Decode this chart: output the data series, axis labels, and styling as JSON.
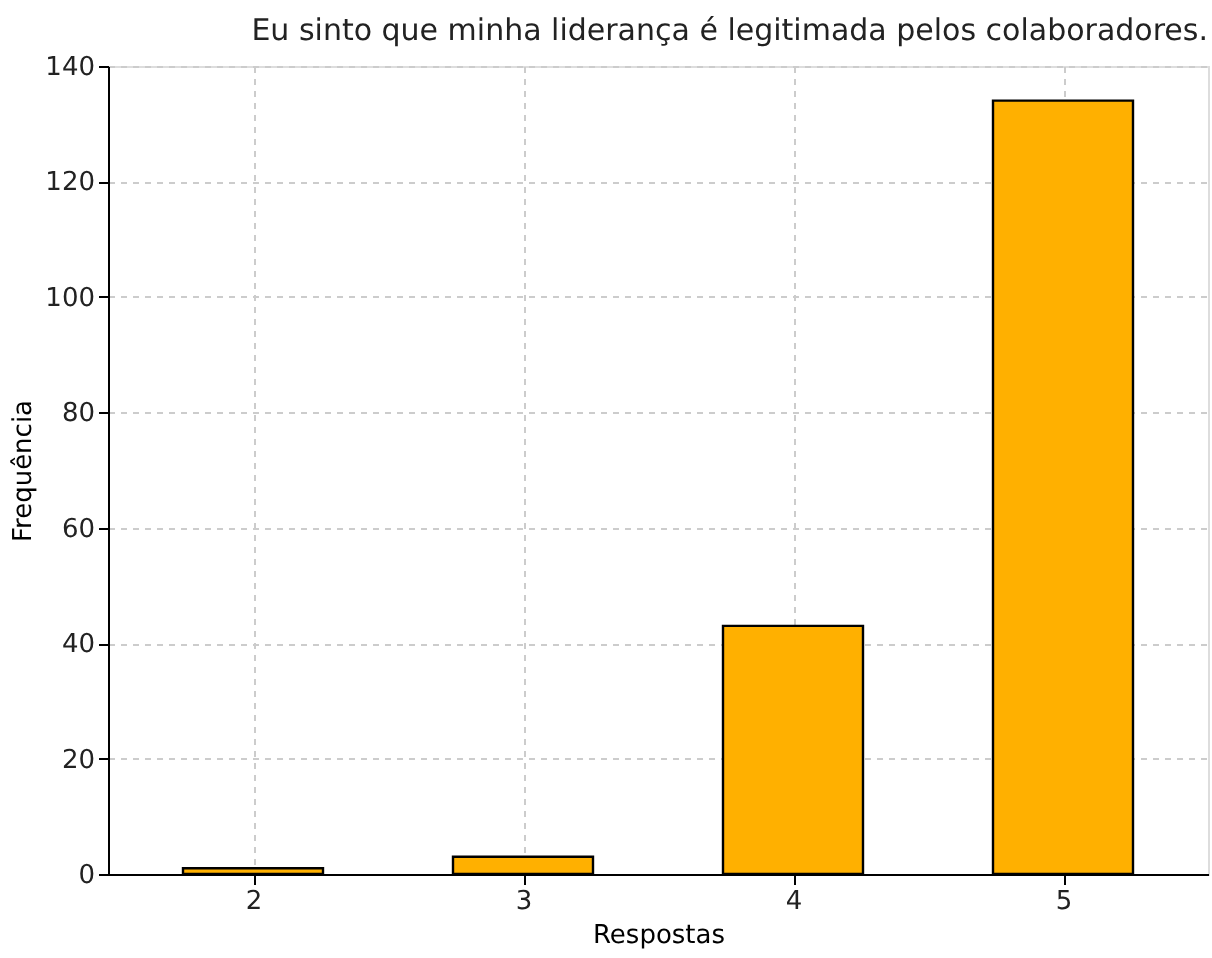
{
  "chart_data": {
    "type": "bar",
    "title": "Eu sinto que minha liderança é legitimada pelos colaboradores.",
    "xlabel": "Respostas",
    "ylabel": "Frequência",
    "categories": [
      "2",
      "3",
      "4",
      "5"
    ],
    "values": [
      1,
      3,
      43,
      134
    ],
    "color": "#ffb000",
    "ylim": [
      0,
      140
    ],
    "yticks": [
      0,
      20,
      40,
      60,
      80,
      100,
      120,
      140
    ],
    "grid": true
  }
}
